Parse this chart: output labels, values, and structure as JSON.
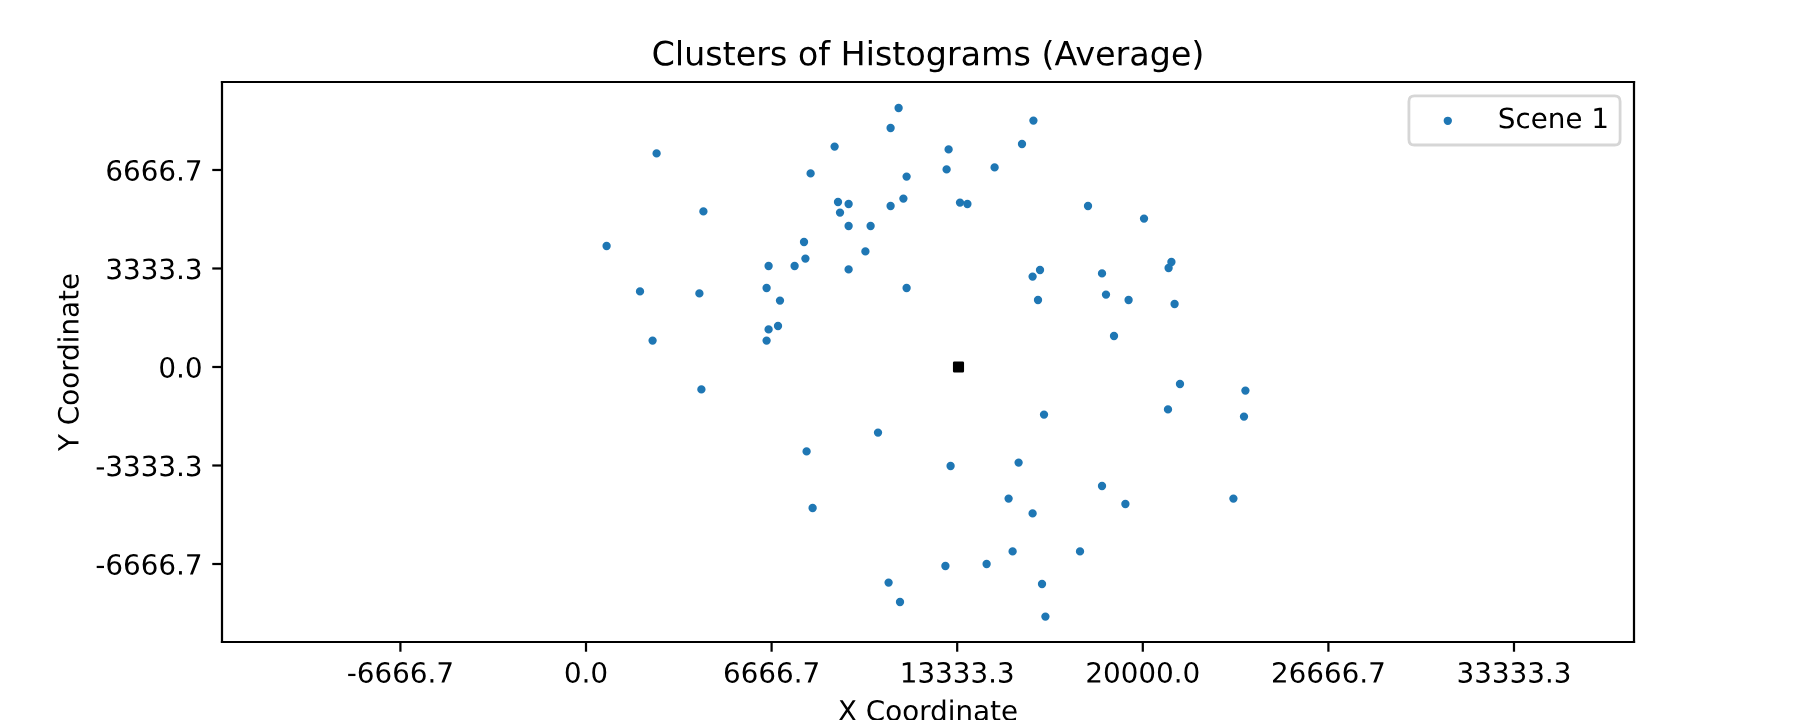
{
  "chart_data": {
    "type": "scatter",
    "title": "Clusters of Histograms (Average)",
    "xlabel": "X Coordinate",
    "ylabel": "Y Coordinate",
    "xlim": [
      -13075,
      37644
    ],
    "ylim": [
      -9306,
      9644
    ],
    "xticks": [
      {
        "value": -6666.7,
        "label": "-6666.7"
      },
      {
        "value": 0,
        "label": "0.0"
      },
      {
        "value": 6666.7,
        "label": "6666.7"
      },
      {
        "value": 13333.3,
        "label": "13333.3"
      },
      {
        "value": 20000,
        "label": "20000.0"
      },
      {
        "value": 26666.7,
        "label": "26666.7"
      },
      {
        "value": 33333.3,
        "label": "33333.3"
      }
    ],
    "yticks": [
      {
        "value": -6666.7,
        "label": "-6666.7"
      },
      {
        "value": -3333.3,
        "label": "-3333.3"
      },
      {
        "value": 0,
        "label": "0.0"
      },
      {
        "value": 3333.3,
        "label": "3333.3"
      },
      {
        "value": 6666.7,
        "label": "6666.7"
      }
    ],
    "grid": false,
    "legend": "top right",
    "series": [
      {
        "name": "Scene 1",
        "color": "#1f77b4",
        "marker": "circle",
        "x": [
          11229,
          10941,
          2536,
          8930,
          8068,
          11516,
          4217,
          9052,
          9433,
          9124,
          10941,
          11401,
          9433,
          10223,
          7831,
          10036,
          7881,
          7493,
          6559,
          9433,
          740,
          1940,
          4073,
          6487,
          11516,
          6968,
          6559,
          6897,
          6487,
          2392,
          16071,
          15661,
          13025,
          12953,
          14677,
          13434,
          13700,
          18032,
          20044,
          21028,
          20927,
          16308,
          16042,
          18535,
          18678,
          19490,
          21142,
          16236,
          18966,
          4145,
          21336,
          23686,
          20905,
          23635,
          16452,
          10489,
          7924,
          13096,
          15539,
          18535,
          19375,
          15180,
          16042,
          8140,
          23255,
          15324,
          17745,
          14390,
          12910,
          10869,
          11279,
          16380,
          16502
        ],
        "values": [
          8765,
          8088,
          7228,
          7458,
          6551,
          6443,
          5266,
          5584,
          5516,
          5225,
          5448,
          5699,
          4772,
          4772,
          4230,
          3912,
          3668,
          3418,
          3418,
          3303,
          4095,
          2558,
          2491,
          2673,
          2673,
          2247,
          1272,
          1387,
          893,
          893,
          8338,
          7546,
          7364,
          6687,
          6754,
          5563,
          5516,
          5448,
          5022,
          3553,
          3350,
          3282,
          3059,
          3167,
          2450,
          2267,
          2132,
          2267,
          1049,
          -758,
          -575,
          -799,
          -1435,
          -1678,
          -1611,
          -2220,
          -2856,
          -3350,
          -3235,
          -4027,
          -4636,
          -4453,
          -4954,
          -4771,
          -4453,
          -6240,
          -6240,
          -6666,
          -6734,
          -7296,
          -7952,
          -7343,
          -8446
        ]
      },
      {
        "color": "#000000",
        "marker": "square",
        "x": [
          13380
        ],
        "values": [
          0
        ]
      }
    ]
  }
}
